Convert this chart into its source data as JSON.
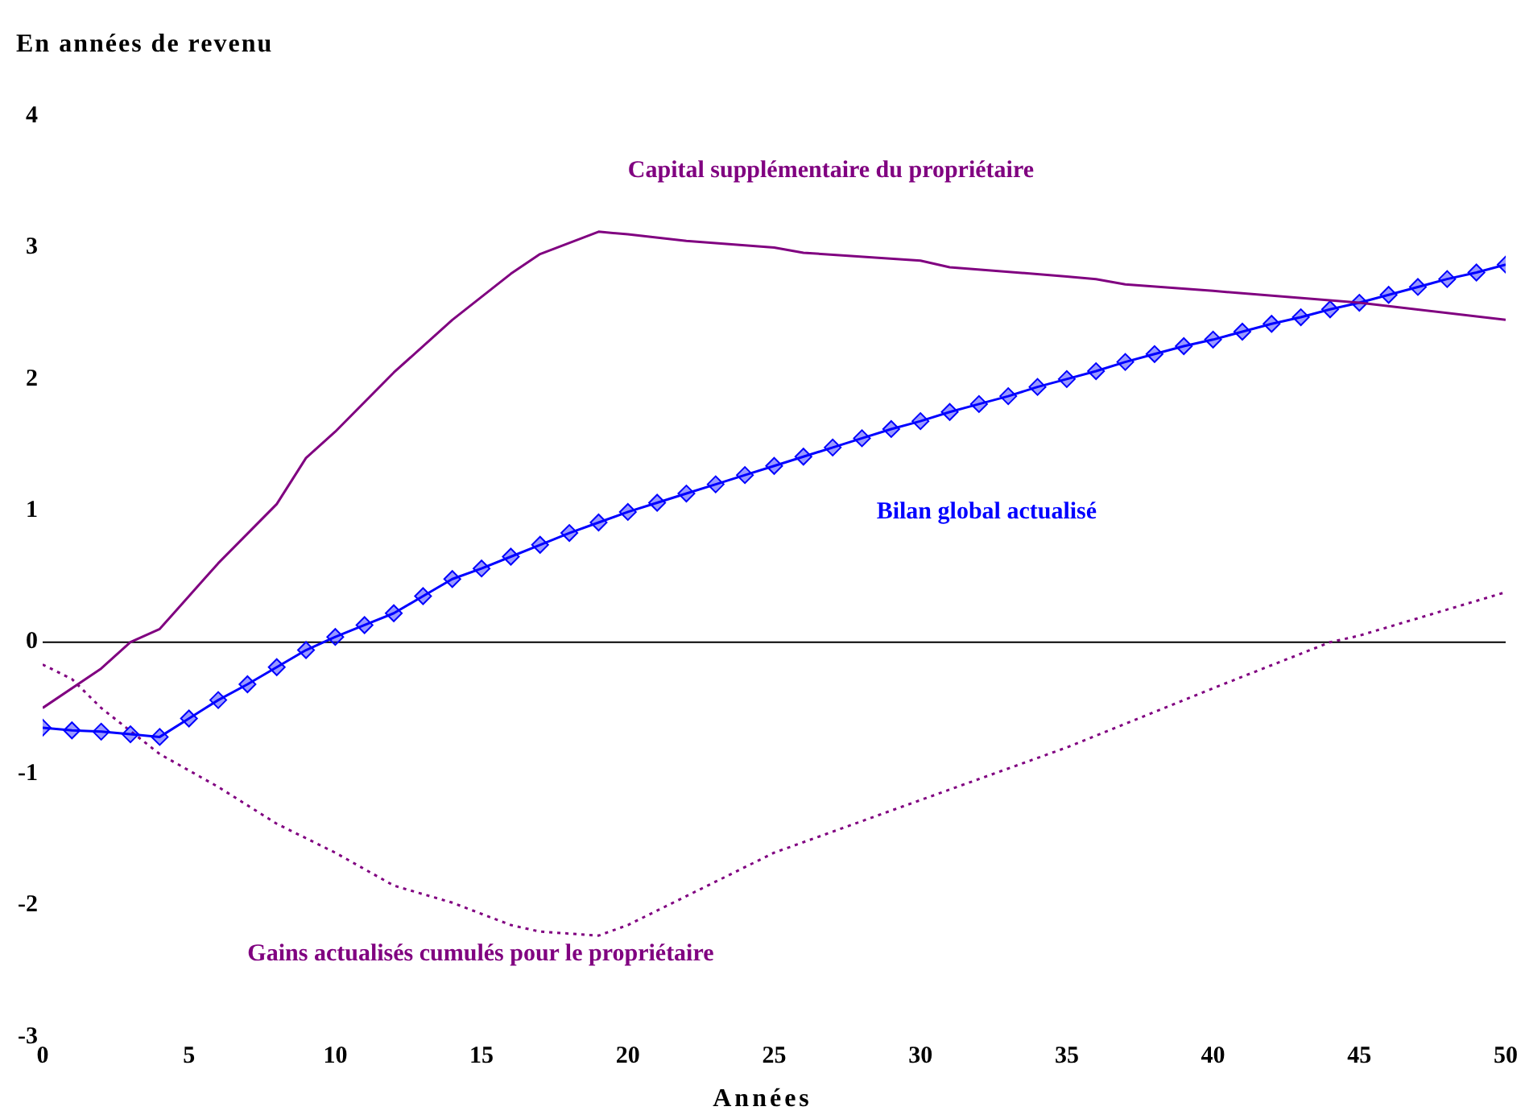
{
  "chart_data": {
    "type": "line",
    "ylabel": "En années de revenu",
    "xlabel": "Années",
    "xlim": [
      0,
      50
    ],
    "xticks": [
      0,
      5,
      10,
      15,
      20,
      25,
      30,
      35,
      40,
      45,
      50
    ],
    "ylim": [
      -3,
      4
    ],
    "yticks": [
      -3,
      -2,
      -1,
      0,
      1,
      2,
      3,
      4
    ],
    "grid": false,
    "legend": false,
    "ref_lines": [
      {
        "axis": "y",
        "value": 0,
        "color": "#000000"
      }
    ],
    "series": [
      {
        "name": "Capital supplémentaire du propriétaire",
        "color": "#800080",
        "marker": "none",
        "line_style": "solid",
        "x": [
          0,
          2,
          3,
          4,
          6,
          8,
          9,
          10,
          12,
          14,
          16,
          17,
          19,
          20,
          22,
          25,
          26,
          30,
          31,
          35,
          36,
          37,
          40,
          45,
          50
        ],
        "values": [
          -0.5,
          -0.2,
          0.0,
          0.1,
          0.6,
          1.05,
          1.4,
          1.6,
          2.05,
          2.45,
          2.8,
          2.95,
          3.12,
          3.1,
          3.05,
          3.0,
          2.96,
          2.9,
          2.85,
          2.78,
          2.76,
          2.72,
          2.67,
          2.58,
          2.45
        ]
      },
      {
        "name": "Bilan global actualisé",
        "color": "#0000ff",
        "marker": "diamond",
        "line_style": "solid",
        "x": [
          0,
          1,
          2,
          3,
          4,
          5,
          6,
          7,
          8,
          9,
          10,
          11,
          12,
          13,
          14,
          15,
          16,
          17,
          18,
          19,
          20,
          21,
          22,
          23,
          24,
          25,
          26,
          27,
          28,
          29,
          30,
          31,
          32,
          33,
          34,
          35,
          36,
          37,
          38,
          39,
          40,
          41,
          42,
          43,
          44,
          45,
          46,
          47,
          48,
          49,
          50
        ],
        "values": [
          -0.65,
          -0.67,
          -0.68,
          -0.7,
          -0.72,
          -0.58,
          -0.44,
          -0.32,
          -0.19,
          -0.06,
          0.04,
          0.13,
          0.22,
          0.35,
          0.48,
          0.56,
          0.65,
          0.74,
          0.83,
          0.91,
          0.99,
          1.06,
          1.13,
          1.2,
          1.27,
          1.34,
          1.41,
          1.48,
          1.55,
          1.62,
          1.68,
          1.75,
          1.81,
          1.87,
          1.94,
          2.0,
          2.06,
          2.13,
          2.19,
          2.25,
          2.3,
          2.36,
          2.42,
          2.47,
          2.53,
          2.58,
          2.64,
          2.7,
          2.76,
          2.81,
          2.87
        ]
      },
      {
        "name": "Gains actualisés cumulés pour le propriétaire",
        "color": "#800080",
        "marker": "none",
        "line_style": "dotted",
        "x": [
          0,
          1,
          2,
          4,
          6,
          8,
          10,
          12,
          14,
          16,
          17,
          19,
          20,
          25,
          30,
          35,
          40,
          44,
          45,
          50
        ],
        "values": [
          -0.17,
          -0.28,
          -0.5,
          -0.85,
          -1.1,
          -1.38,
          -1.6,
          -1.85,
          -1.98,
          -2.15,
          -2.2,
          -2.23,
          -2.15,
          -1.6,
          -1.2,
          -0.8,
          -0.35,
          0.0,
          0.05,
          0.38
        ]
      }
    ]
  }
}
